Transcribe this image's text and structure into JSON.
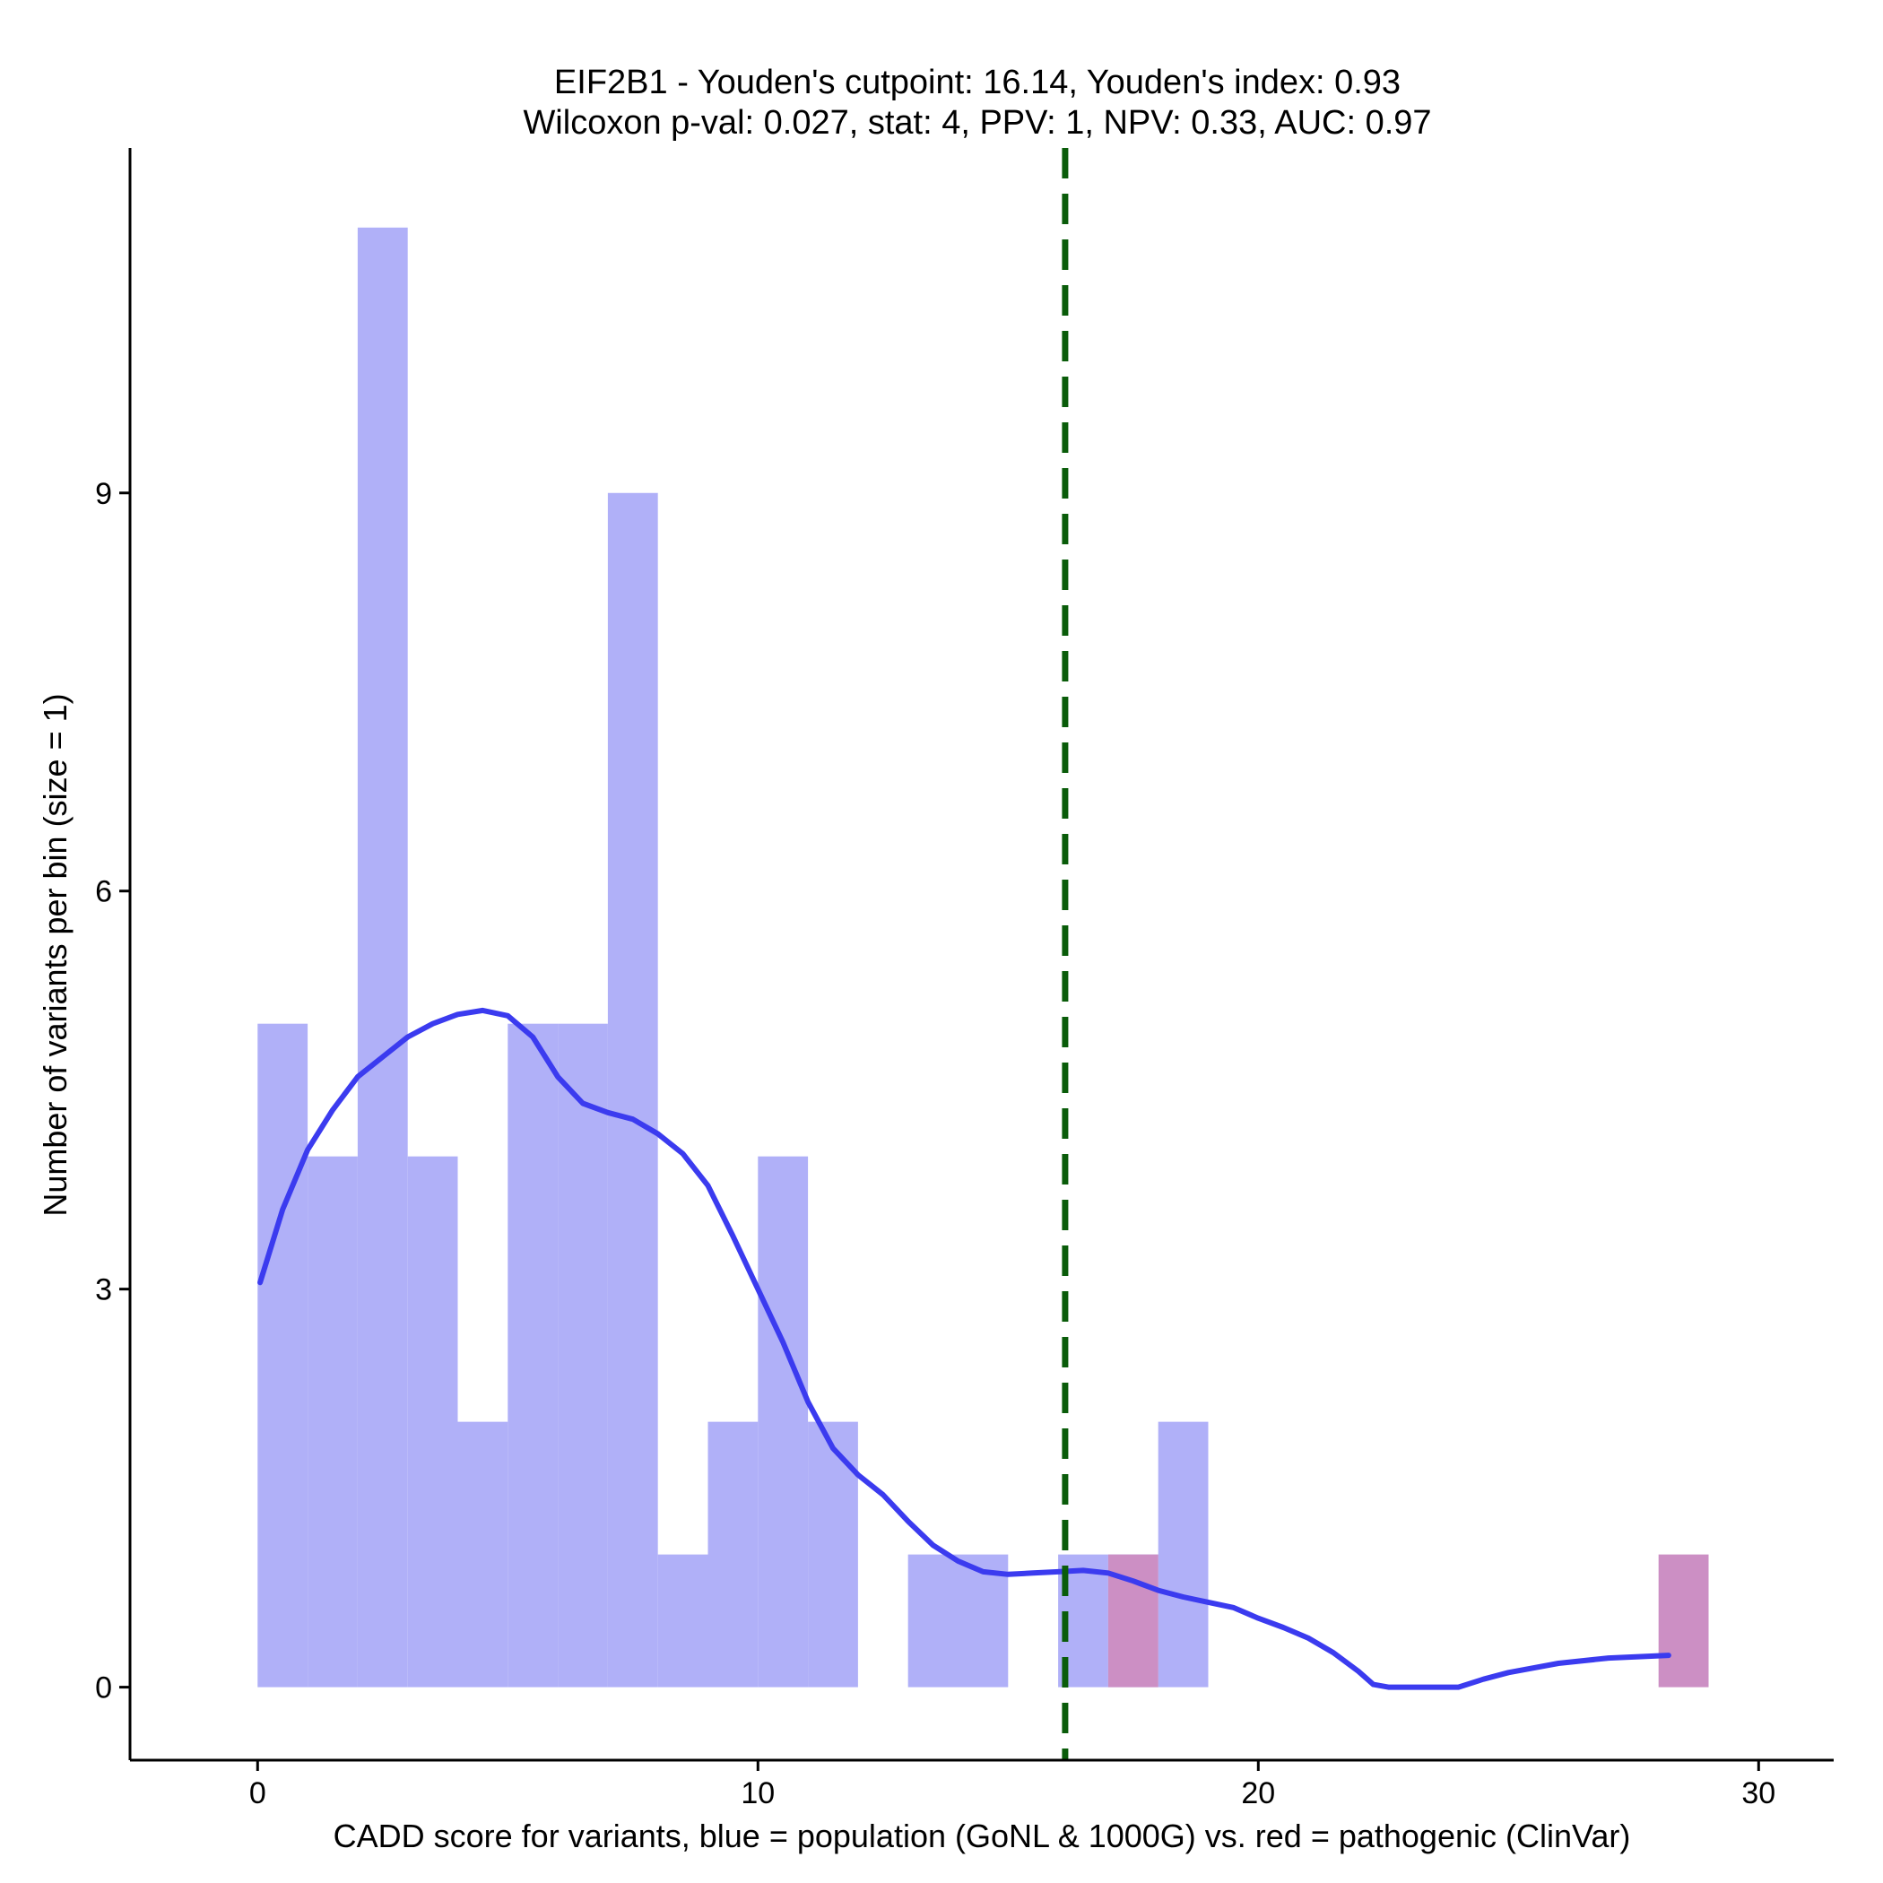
{
  "chart_data": {
    "type": "bar",
    "title": "EIF2B1 - Youden's cutpoint: 16.14, Youden's index: 0.93",
    "subtitle": "Wilcoxon p-val: 0.027, stat: 4, PPV: 1, NPV: 0.33, AUC: 0.97",
    "xlabel": "CADD score for variants, blue = population (GoNL & 1000G) vs. red = pathogenic (ClinVar)",
    "ylabel": "Number of variants per bin (size = 1)",
    "xlim": [
      -2.55,
      31.5
    ],
    "ylim": [
      -0.55,
      11.6
    ],
    "x_ticks": [
      0,
      10,
      20,
      30
    ],
    "y_ticks": [
      0,
      3,
      6,
      9
    ],
    "bin_width": 1,
    "cutpoint": 16.14,
    "series": [
      {
        "name": "population (GoNL & 1000G)",
        "color": "#b0b0f8",
        "bins": [
          {
            "start": 0,
            "count": 5
          },
          {
            "start": 1,
            "count": 4
          },
          {
            "start": 2,
            "count": 11
          },
          {
            "start": 3,
            "count": 4
          },
          {
            "start": 4,
            "count": 2
          },
          {
            "start": 5,
            "count": 5
          },
          {
            "start": 6,
            "count": 5
          },
          {
            "start": 7,
            "count": 9
          },
          {
            "start": 8,
            "count": 1
          },
          {
            "start": 9,
            "count": 2
          },
          {
            "start": 10,
            "count": 4
          },
          {
            "start": 11,
            "count": 2
          },
          {
            "start": 13,
            "count": 1
          },
          {
            "start": 14,
            "count": 1
          },
          {
            "start": 16,
            "count": 1
          },
          {
            "start": 17,
            "count": 1
          },
          {
            "start": 18,
            "count": 2
          }
        ]
      },
      {
        "name": "pathogenic (ClinVar)",
        "color": "#cc8fc4",
        "bins": [
          {
            "start": 17,
            "count": 1
          },
          {
            "start": 28,
            "count": 1
          }
        ]
      }
    ],
    "density_curve": {
      "name": "population density",
      "color": "#3b3bef",
      "points": [
        [
          0.05,
          3.05
        ],
        [
          0.5,
          3.6
        ],
        [
          1.0,
          4.05
        ],
        [
          1.5,
          4.35
        ],
        [
          2.0,
          4.6
        ],
        [
          2.5,
          4.75
        ],
        [
          3.0,
          4.9
        ],
        [
          3.5,
          5.0
        ],
        [
          4.0,
          5.07
        ],
        [
          4.5,
          5.1
        ],
        [
          5.0,
          5.06
        ],
        [
          5.5,
          4.9
        ],
        [
          6.0,
          4.6
        ],
        [
          6.5,
          4.4
        ],
        [
          7.0,
          4.33
        ],
        [
          7.5,
          4.28
        ],
        [
          8.0,
          4.17
        ],
        [
          8.5,
          4.02
        ],
        [
          9.0,
          3.78
        ],
        [
          9.5,
          3.4
        ],
        [
          10.0,
          3.0
        ],
        [
          10.5,
          2.6
        ],
        [
          11.0,
          2.15
        ],
        [
          11.5,
          1.8
        ],
        [
          12.0,
          1.6
        ],
        [
          12.5,
          1.45
        ],
        [
          13.0,
          1.25
        ],
        [
          13.5,
          1.07
        ],
        [
          14.0,
          0.95
        ],
        [
          14.5,
          0.87
        ],
        [
          15.0,
          0.85
        ],
        [
          15.5,
          0.86
        ],
        [
          16.0,
          0.87
        ],
        [
          16.5,
          0.88
        ],
        [
          17.0,
          0.86
        ],
        [
          17.5,
          0.8
        ],
        [
          18.0,
          0.73
        ],
        [
          18.5,
          0.68
        ],
        [
          19.0,
          0.64
        ],
        [
          19.5,
          0.6
        ],
        [
          20.0,
          0.52
        ],
        [
          20.5,
          0.45
        ],
        [
          21.0,
          0.37
        ],
        [
          21.5,
          0.26
        ],
        [
          22.0,
          0.12
        ],
        [
          22.3,
          0.02
        ],
        [
          22.6,
          0.0
        ],
        [
          24.0,
          0.0
        ],
        [
          24.5,
          0.06
        ],
        [
          25.0,
          0.11
        ],
        [
          26.0,
          0.18
        ],
        [
          27.0,
          0.22
        ],
        [
          28.2,
          0.24
        ]
      ]
    },
    "cutpoint_color": "#0a5c0a"
  }
}
